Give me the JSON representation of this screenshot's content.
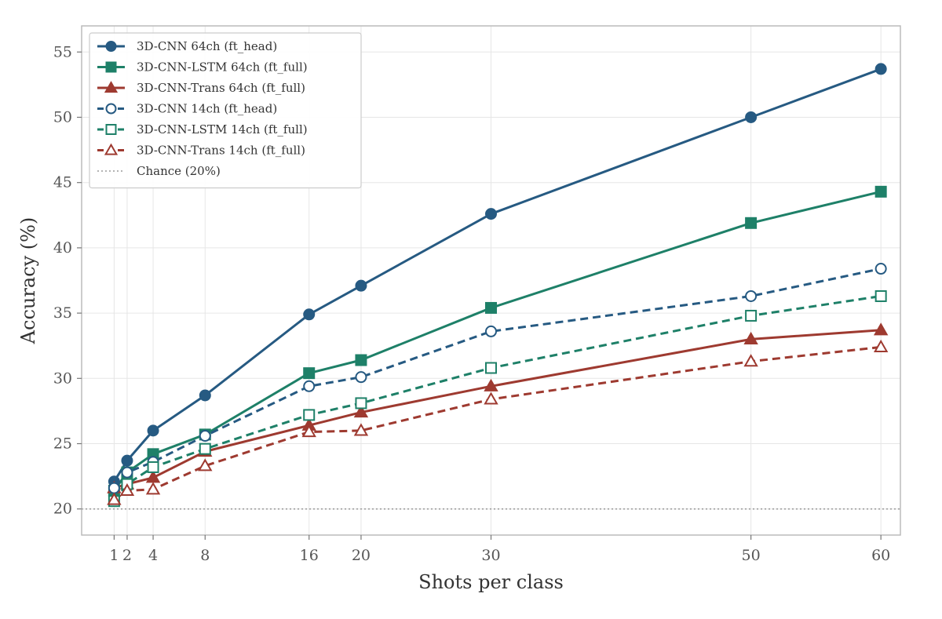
{
  "chart_data": {
    "type": "line",
    "xlabel": "Shots per class",
    "ylabel": "Accuracy (%)",
    "xlim": [
      -1.5,
      61.5
    ],
    "ylim": [
      18,
      57
    ],
    "x_ticks": [
      1,
      2,
      4,
      8,
      16,
      20,
      30,
      50,
      60
    ],
    "y_ticks": [
      20,
      25,
      30,
      35,
      40,
      45,
      50,
      55
    ],
    "grid": true,
    "legend_position": "top-left",
    "x": [
      1,
      2,
      4,
      8,
      16,
      20,
      30,
      50,
      60
    ],
    "series": [
      {
        "name": "3D-CNN 64ch (ft_head)",
        "color": "#265a82",
        "marker": "circle",
        "filled": true,
        "dashed": false,
        "values": [
          22.1,
          23.7,
          26.0,
          28.7,
          34.9,
          37.1,
          42.6,
          50.0,
          53.7
        ]
      },
      {
        "name": "3D-CNN-LSTM 64ch (ft_full)",
        "color": "#1e8068",
        "marker": "square",
        "filled": true,
        "dashed": false,
        "values": [
          21.4,
          22.8,
          24.2,
          25.7,
          30.4,
          31.4,
          35.4,
          41.9,
          44.3
        ]
      },
      {
        "name": "3D-CNN-Trans 64ch (ft_full)",
        "color": "#9e3a30",
        "marker": "triangle",
        "filled": true,
        "dashed": false,
        "values": [
          21.6,
          21.9,
          22.4,
          24.4,
          26.4,
          27.4,
          29.4,
          33.0,
          33.7
        ]
      },
      {
        "name": "3D-CNN 14ch (ft_head)",
        "color": "#265a82",
        "marker": "circle",
        "filled": false,
        "dashed": true,
        "values": [
          21.6,
          22.8,
          23.6,
          25.6,
          29.4,
          30.1,
          33.6,
          36.3,
          38.4
        ]
      },
      {
        "name": "3D-CNN-LSTM 14ch (ft_full)",
        "color": "#1e8068",
        "marker": "square",
        "filled": false,
        "dashed": true,
        "values": [
          20.6,
          21.9,
          23.2,
          24.6,
          27.2,
          28.1,
          30.8,
          34.8,
          36.3
        ]
      },
      {
        "name": "3D-CNN-Trans 14ch (ft_full)",
        "color": "#9e3a30",
        "marker": "triangle",
        "filled": false,
        "dashed": true,
        "values": [
          20.7,
          21.4,
          21.5,
          23.3,
          25.9,
          26.0,
          28.4,
          31.3,
          32.4
        ]
      }
    ],
    "reference_line": {
      "name": "Chance (20%)",
      "y": 20,
      "color": "#9a9a9a"
    }
  }
}
